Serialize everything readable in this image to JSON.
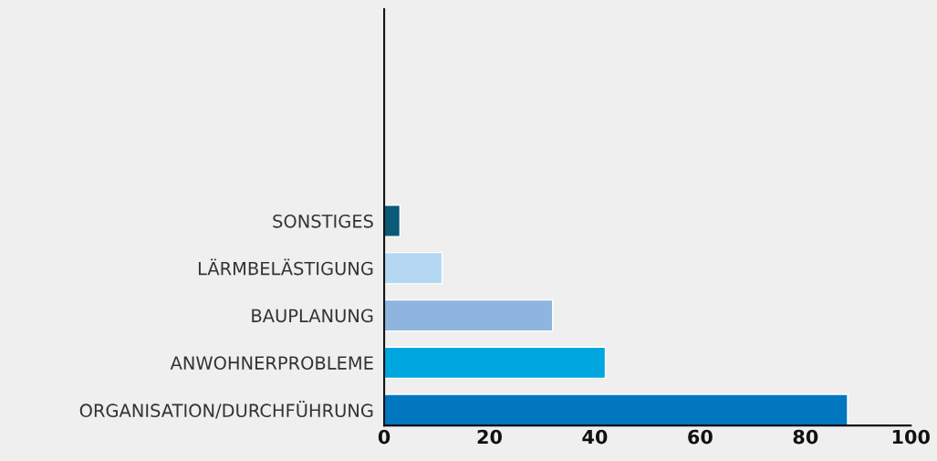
{
  "chart_data": {
    "type": "bar",
    "orientation": "horizontal",
    "categories": [
      null,
      null,
      null,
      null,
      "SONSTIGES",
      "LÄRMBELÄSTIGUNG",
      "BAUPLANUNG",
      "ANWOHNERPROBLEME",
      "ORGANISATION/DURCHFÜHRUNG"
    ],
    "values": [
      null,
      null,
      null,
      null,
      3,
      11,
      32,
      42,
      88
    ],
    "colors": [
      "#0a5a78",
      "#0a5a78",
      "#0a5a78",
      "#0a5a78",
      "#0a5a78",
      "#b5d8f2",
      "#8db5e0",
      "#00a6e0",
      "#0077bf"
    ],
    "xlim": [
      0,
      100
    ],
    "xticks": [
      0,
      20,
      40,
      60,
      80,
      100
    ],
    "grid": false,
    "legend": false
  }
}
